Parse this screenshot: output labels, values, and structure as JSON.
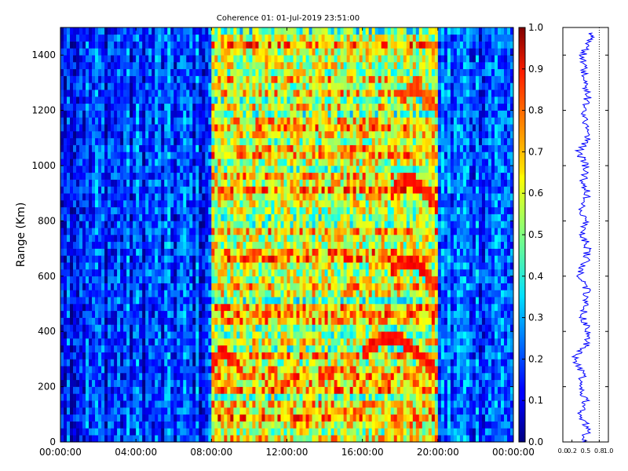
{
  "chart_data": [
    {
      "type": "heatmap",
      "title": "Coherence 01: 01-Jul-2019 23:51:00",
      "ylabel": "Range (Km)",
      "xlabel": "",
      "x_ticks": [
        "00:00:00",
        "04:00:00",
        "08:00:00",
        "12:00:00",
        "16:00:00",
        "20:00:00",
        "00:00:00"
      ],
      "x_range_hours": [
        0,
        24
      ],
      "y_ticks": [
        0,
        200,
        400,
        600,
        800,
        1000,
        1200,
        1400
      ],
      "ylim": [
        0,
        1500
      ],
      "colorbar": {
        "colormap": "jet",
        "range": [
          0,
          1
        ],
        "ticks": [
          "0.0",
          "0.1",
          "0.2",
          "0.3",
          "0.4",
          "0.5",
          "0.6",
          "0.7",
          "0.8",
          "0.9",
          "1.0"
        ]
      },
      "regions": [
        {
          "time_hours": [
            0,
            8
          ],
          "coherence_range": [
            0.05,
            0.3
          ],
          "note": "low coherence, vertical striping"
        },
        {
          "time_hours": [
            8,
            20
          ],
          "coherence_range": [
            0.4,
            0.8
          ],
          "note": "high coherence with horizontal banding"
        },
        {
          "time_hours": [
            20,
            24
          ],
          "coherence_range": [
            0.1,
            0.35
          ],
          "note": "low coherence, vertical striping"
        }
      ],
      "features": [
        {
          "time_hours": [
            16,
            20
          ],
          "range_km": [
            240,
            380
          ],
          "value": 0.9,
          "note": "curved high-coherence echo trace"
        },
        {
          "time_hours": [
            17.5,
            20
          ],
          "range_km": [
            560,
            660
          ],
          "value": 0.9,
          "note": "curved high-coherence echo trace"
        },
        {
          "time_hours": [
            17.5,
            20
          ],
          "range_km": [
            840,
            950
          ],
          "value": 0.9,
          "note": "curved high-coherence echo trace"
        },
        {
          "time_hours": [
            18,
            20
          ],
          "range_km": [
            1200,
            1280
          ],
          "value": 0.85,
          "note": "curved high-coherence echo trace"
        },
        {
          "time_hours": [
            8,
            9.5
          ],
          "range_km": [
            270,
            320
          ],
          "value": 0.9,
          "note": "short high-coherence echo"
        }
      ]
    },
    {
      "type": "line",
      "x_ticks": [
        "0.0",
        "0.2",
        "0.5",
        "0.8",
        "1.0"
      ],
      "xlim": [
        0,
        1
      ],
      "ylim": [
        0,
        1500
      ],
      "reference_line_x": 0.8,
      "series": [
        {
          "color": "#0000ff",
          "range_km": [
            0,
            50,
            100,
            150,
            200,
            250,
            300,
            350,
            400,
            450,
            500,
            550,
            600,
            650,
            700,
            750,
            800,
            850,
            900,
            950,
            1000,
            1050,
            1100,
            1150,
            1200,
            1250,
            1300,
            1350,
            1400,
            1450,
            1480
          ],
          "values": [
            0.45,
            0.55,
            0.4,
            0.5,
            0.35,
            0.45,
            0.25,
            0.5,
            0.55,
            0.45,
            0.5,
            0.55,
            0.35,
            0.5,
            0.55,
            0.45,
            0.5,
            0.4,
            0.55,
            0.45,
            0.5,
            0.35,
            0.55,
            0.5,
            0.45,
            0.55,
            0.5,
            0.45,
            0.45,
            0.55,
            0.65
          ]
        }
      ]
    }
  ]
}
